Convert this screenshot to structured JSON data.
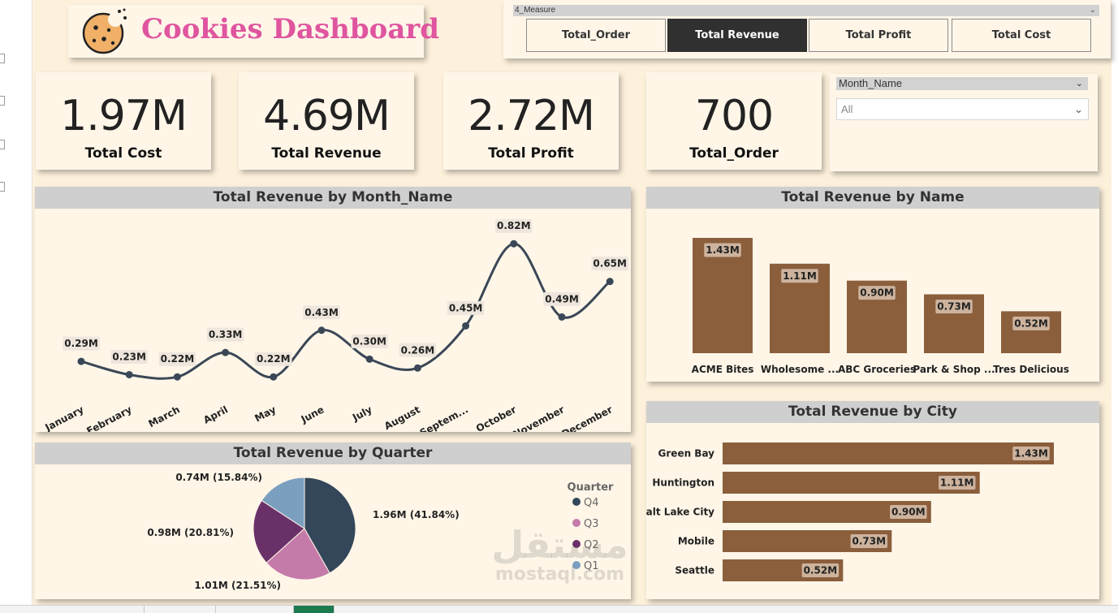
{
  "header": {
    "title": "Cookies Dashboard",
    "title_color": "#e0559f",
    "logo_icon": "cookie-icon"
  },
  "measure_slicer": {
    "caption": "4_Measure",
    "buttons": [
      {
        "label": "Total_Order",
        "active": false
      },
      {
        "label": "Total Revenue",
        "active": true
      },
      {
        "label": "Total Profit",
        "active": false
      },
      {
        "label": "Total Cost",
        "active": false
      }
    ]
  },
  "kpis": [
    {
      "value": "1.97M",
      "label": "Total Cost"
    },
    {
      "value": "4.69M",
      "label": "Total Revenue"
    },
    {
      "value": "2.72M",
      "label": "Total Profit"
    },
    {
      "value": "700",
      "label": "Total_Order"
    }
  ],
  "month_slicer": {
    "header": "Month_Name",
    "selected": "All"
  },
  "colors": {
    "canvas_bg": "#fdf1dc",
    "card_bg": "#fff6e8",
    "bar_brown": "#8b5e3c",
    "line_dark": "#3a4756",
    "title_strip": "#cfcfcf",
    "q4": "#34475a",
    "q3": "#c57ba9",
    "q2": "#6a3168",
    "q1": "#7b9fbf"
  },
  "chart_data": [
    {
      "type": "line",
      "title": "Total Revenue by Month_Name",
      "categories": [
        "January",
        "February",
        "March",
        "April",
        "May",
        "June",
        "July",
        "August",
        "Septem...",
        "October",
        "November",
        "December"
      ],
      "values": [
        0.29,
        0.23,
        0.22,
        0.33,
        0.22,
        0.43,
        0.3,
        0.26,
        0.45,
        0.82,
        0.49,
        0.65
      ],
      "data_labels": [
        "0.29M",
        "0.23M",
        "0.22M",
        "0.33M",
        "0.22M",
        "0.43M",
        "0.30M",
        "0.26M",
        "0.45M",
        "0.82M",
        "0.49M",
        "0.65M"
      ],
      "ylim": [
        0.1,
        0.85
      ],
      "grid": false
    },
    {
      "type": "bar",
      "title": "Total Revenue by Name",
      "categories": [
        "ACME Bites",
        "Wholesome ...",
        "ABC Groceries",
        "Park & Shop ...",
        "Tres Delicious"
      ],
      "values": [
        1.43,
        1.11,
        0.9,
        0.73,
        0.52
      ],
      "data_labels": [
        "1.43M",
        "1.11M",
        "0.90M",
        "0.73M",
        "0.52M"
      ],
      "ylim": [
        0,
        1.5
      ],
      "grid": false
    },
    {
      "type": "bar",
      "orientation": "horizontal",
      "title": "Total Revenue by City",
      "categories": [
        "Green Bay",
        "Huntington",
        "Salt Lake City",
        "Mobile",
        "Seattle"
      ],
      "values": [
        1.43,
        1.11,
        0.9,
        0.73,
        0.52
      ],
      "data_labels": [
        "1.43M",
        "1.11M",
        "0.90M",
        "0.73M",
        "0.52M"
      ],
      "xlim": [
        0,
        1.43
      ],
      "grid": false
    },
    {
      "type": "pie",
      "title": "Total Revenue by Quarter",
      "legend_title": "Quarter",
      "legend_placement": "right",
      "slices": [
        {
          "name": "Q4",
          "value": 1.96,
          "label": "1.96M (41.84%)"
        },
        {
          "name": "Q3",
          "value": 1.01,
          "label": "1.01M (21.51%)"
        },
        {
          "name": "Q2",
          "value": 0.98,
          "label": "0.98M (20.81%)"
        },
        {
          "name": "Q1",
          "value": 0.74,
          "label": "0.74M (15.84%)"
        }
      ]
    }
  ],
  "watermark": {
    "arabic": "مستقل",
    "latin": "mostaql.com"
  }
}
